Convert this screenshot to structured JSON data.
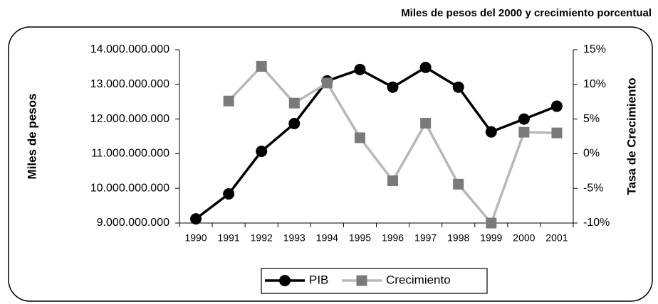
{
  "chart_data": {
    "type": "line",
    "title": "Miles de pesos del 2000 y crecimiento porcentual",
    "y_label": "Miles de pesos",
    "y2_label": "Tasa de Crecimiento",
    "categories": [
      "1990",
      "1991",
      "1992",
      "1993",
      "1994",
      "1995",
      "1996",
      "1997",
      "1998",
      "1999",
      "2000",
      "2001"
    ],
    "series": [
      {
        "name": "PIB",
        "color": "#000000",
        "marker": "circle",
        "values": [
          9120000000,
          9840000000,
          11070000000,
          11870000000,
          13100000000,
          13430000000,
          12920000000,
          13490000000,
          12920000000,
          11630000000,
          12000000000,
          12370000000
        ]
      },
      {
        "name": "Crecimiento",
        "color": "#b8b8b8",
        "marker_color": "#7a7a7a",
        "marker": "square",
        "axis": "y2",
        "values": [
          null,
          7.6,
          12.6,
          7.3,
          10.2,
          2.3,
          -3.9,
          4.4,
          -4.4,
          -10.0,
          3.1,
          3.0
        ]
      }
    ],
    "ylim": [
      9000000000,
      14000000000
    ],
    "yticks": [
      {
        "value": 9000000000,
        "label": "9.000.000.000"
      },
      {
        "value": 10000000000,
        "label": "10.000.000.000"
      },
      {
        "value": 11000000000,
        "label": "11.000.000.000"
      },
      {
        "value": 12000000000,
        "label": "12.000.000.000"
      },
      {
        "value": 13000000000,
        "label": "13.000.000.000"
      },
      {
        "value": 14000000000,
        "label": "14.000.000.000"
      }
    ],
    "y2lim": [
      -10,
      15
    ],
    "y2ticks": [
      {
        "value": -10,
        "label": "-10%"
      },
      {
        "value": -5,
        "label": "-5%"
      },
      {
        "value": 0,
        "label": "0%"
      },
      {
        "value": 5,
        "label": "5%"
      },
      {
        "value": 10,
        "label": "10%"
      },
      {
        "value": 15,
        "label": "15%"
      }
    ],
    "grid": false,
    "legend": "bottom"
  }
}
